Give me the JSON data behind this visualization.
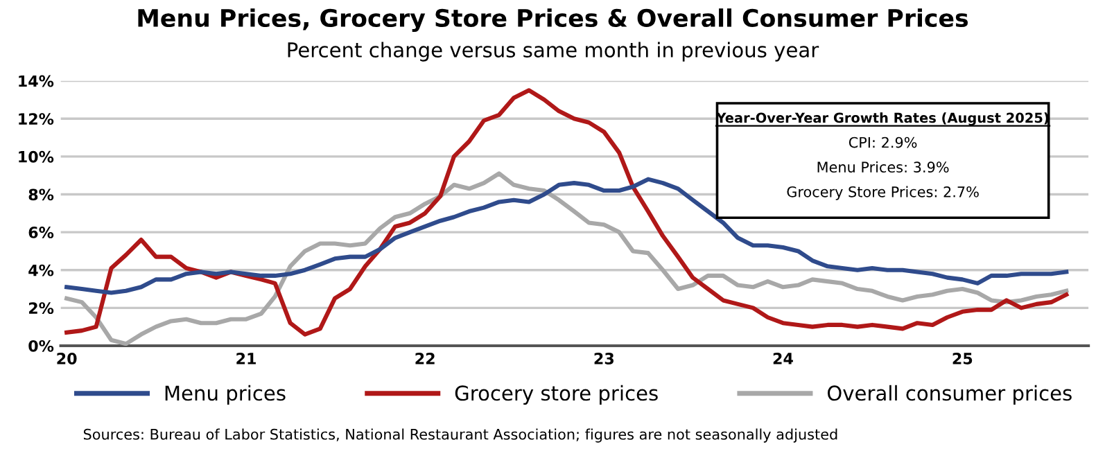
{
  "chart_data": {
    "type": "line",
    "title": "Menu Prices, Grocery Store Prices & Overall Consumer Prices",
    "subtitle": "Percent change versus same month in previous year",
    "x": [
      "2020-01",
      "2020-02",
      "2020-03",
      "2020-04",
      "2020-05",
      "2020-06",
      "2020-07",
      "2020-08",
      "2020-09",
      "2020-10",
      "2020-11",
      "2020-12",
      "2021-01",
      "2021-02",
      "2021-03",
      "2021-04",
      "2021-05",
      "2021-06",
      "2021-07",
      "2021-08",
      "2021-09",
      "2021-10",
      "2021-11",
      "2021-12",
      "2022-01",
      "2022-02",
      "2022-03",
      "2022-04",
      "2022-05",
      "2022-06",
      "2022-07",
      "2022-08",
      "2022-09",
      "2022-10",
      "2022-11",
      "2022-12",
      "2023-01",
      "2023-02",
      "2023-03",
      "2023-04",
      "2023-05",
      "2023-06",
      "2023-07",
      "2023-08",
      "2023-09",
      "2023-10",
      "2023-11",
      "2023-12",
      "2024-01",
      "2024-02",
      "2024-03",
      "2024-04",
      "2024-05",
      "2024-06",
      "2024-07",
      "2024-08",
      "2024-09",
      "2024-10",
      "2024-11",
      "2024-12",
      "2025-01",
      "2025-02",
      "2025-03",
      "2025-04",
      "2025-05",
      "2025-06",
      "2025-07",
      "2025-08"
    ],
    "series": [
      {
        "name": "Menu prices",
        "color": "#2f4b8c",
        "values": [
          3.1,
          3.0,
          2.9,
          2.8,
          2.9,
          3.1,
          3.5,
          3.5,
          3.8,
          3.9,
          3.8,
          3.9,
          3.8,
          3.7,
          3.7,
          3.8,
          4.0,
          4.3,
          4.6,
          4.7,
          4.7,
          5.1,
          5.7,
          6.0,
          6.3,
          6.6,
          6.8,
          7.1,
          7.3,
          7.6,
          7.7,
          7.6,
          8.0,
          8.5,
          8.6,
          8.5,
          8.2,
          8.2,
          8.4,
          8.8,
          8.6,
          8.3,
          7.7,
          7.1,
          6.5,
          5.7,
          5.3,
          5.3,
          5.2,
          5.0,
          4.5,
          4.2,
          4.1,
          4.0,
          4.1,
          4.0,
          4.0,
          3.9,
          3.8,
          3.6,
          3.5,
          3.3,
          3.7,
          3.7,
          3.8,
          3.8,
          3.8,
          3.9
        ]
      },
      {
        "name": "Grocery store prices",
        "color": "#b01818",
        "values": [
          0.7,
          0.8,
          1.0,
          4.1,
          4.8,
          5.6,
          4.7,
          4.7,
          4.1,
          3.9,
          3.6,
          3.9,
          3.7,
          3.5,
          3.3,
          1.2,
          0.6,
          0.9,
          2.5,
          3.0,
          4.2,
          5.1,
          6.3,
          6.5,
          7.0,
          7.9,
          10.0,
          10.8,
          11.9,
          12.2,
          13.1,
          13.5,
          13.0,
          12.4,
          12.0,
          11.8,
          11.3,
          10.2,
          8.4,
          7.1,
          5.8,
          4.7,
          3.6,
          3.0,
          2.4,
          2.2,
          2.0,
          1.5,
          1.2,
          1.1,
          1.0,
          1.1,
          1.1,
          1.0,
          1.1,
          1.0,
          0.9,
          1.2,
          1.1,
          1.5,
          1.8,
          1.9,
          1.9,
          2.4,
          2.0,
          2.2,
          2.3,
          2.7
        ]
      },
      {
        "name": "Overall consumer prices",
        "color": "#a8a8a8",
        "values": [
          2.5,
          2.3,
          1.5,
          0.3,
          0.1,
          0.6,
          1.0,
          1.3,
          1.4,
          1.2,
          1.2,
          1.4,
          1.4,
          1.7,
          2.6,
          4.2,
          5.0,
          5.4,
          5.4,
          5.3,
          5.4,
          6.2,
          6.8,
          7.0,
          7.5,
          7.9,
          8.5,
          8.3,
          8.6,
          9.1,
          8.5,
          8.3,
          8.2,
          7.7,
          7.1,
          6.5,
          6.4,
          6.0,
          5.0,
          4.9,
          4.0,
          3.0,
          3.2,
          3.7,
          3.7,
          3.2,
          3.1,
          3.4,
          3.1,
          3.2,
          3.5,
          3.4,
          3.3,
          3.0,
          2.9,
          2.6,
          2.4,
          2.6,
          2.7,
          2.9,
          3.0,
          2.8,
          2.4,
          2.3,
          2.4,
          2.6,
          2.7,
          2.9
        ]
      }
    ],
    "xlim": [
      "2019-12-20",
      "2025-09-15"
    ],
    "xticks": [
      {
        "value": "2020-01-01",
        "label": "20"
      },
      {
        "value": "2021-01-01",
        "label": "21"
      },
      {
        "value": "2022-01-01",
        "label": "22"
      },
      {
        "value": "2023-01-01",
        "label": "23"
      },
      {
        "value": "2024-01-01",
        "label": "24"
      },
      {
        "value": "2025-01-01",
        "label": "25"
      }
    ],
    "ylim": [
      0,
      14
    ],
    "yticks": [
      {
        "value": 0,
        "label": "0%"
      },
      {
        "value": 2,
        "label": "2%"
      },
      {
        "value": 4,
        "label": "4%"
      },
      {
        "value": 6,
        "label": "6%"
      },
      {
        "value": 8,
        "label": "8%"
      },
      {
        "value": 10,
        "label": "10%"
      },
      {
        "value": 12,
        "label": "12%"
      },
      {
        "value": 14,
        "label": "14%"
      }
    ],
    "grid": "y",
    "legend": "bottom",
    "line_style": "solid",
    "marker": "none",
    "annotations": [
      "Year-Over-Year Growth Rates (August 2025)",
      "CPI: 2.9%",
      "Menu Prices: 3.9%",
      "Grocery Store Prices: 2.7%",
      "Sources: Bureau of Labor Statistics, National Restaurant Association; figures are not seasonally adjusted"
    ]
  }
}
